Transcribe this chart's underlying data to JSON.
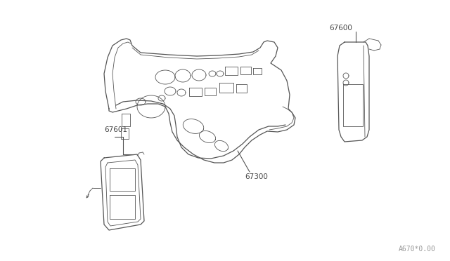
{
  "background_color": "#ffffff",
  "line_color": "#555555",
  "label_color": "#444444",
  "figure_width": 6.4,
  "figure_height": 3.72,
  "dpi": 100,
  "watermark": "A670*0.00",
  "watermark_fontsize": 7,
  "label_fontsize": 7.5
}
